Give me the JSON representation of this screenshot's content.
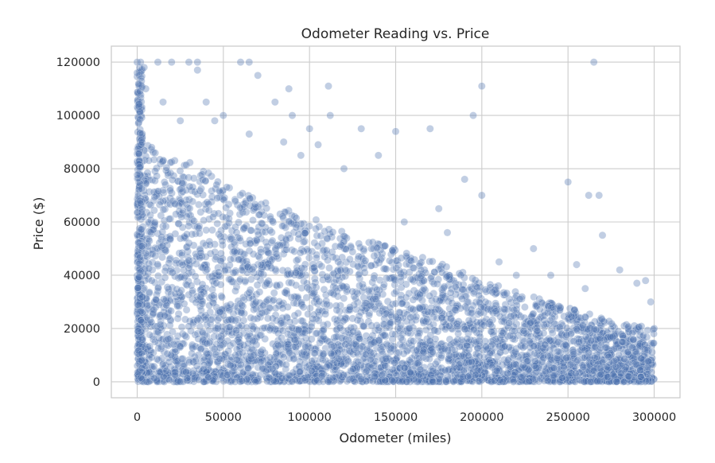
{
  "chart_data": {
    "type": "scatter",
    "title": "Odometer Reading vs. Price",
    "xlabel": "Odometer (miles)",
    "ylabel": "Price ($)",
    "xlim": [
      -15000,
      315000
    ],
    "ylim": [
      -6000,
      126000
    ],
    "x_ticks": [
      0,
      50000,
      100000,
      150000,
      200000,
      250000,
      300000
    ],
    "y_ticks": [
      0,
      20000,
      40000,
      60000,
      80000,
      100000,
      120000
    ],
    "grid": true,
    "legend": "none",
    "series": [
      {
        "color": "#4c72b0",
        "marker": "circle",
        "alpha": 0.35,
        "dense_region": {
          "x_range": [
            0,
            300000
          ],
          "upper_price_envelope": [
            [
              0,
              90000
            ],
            [
              25000,
              85000
            ],
            [
              50000,
              75000
            ],
            [
              75000,
              67000
            ],
            [
              100000,
              62000
            ],
            [
              125000,
              55000
            ],
            [
              150000,
              50000
            ],
            [
              175000,
              45000
            ],
            [
              200000,
              38000
            ],
            [
              225000,
              33000
            ],
            [
              250000,
              28000
            ],
            [
              275000,
              23000
            ],
            [
              300000,
              20000
            ]
          ]
        },
        "sample_points": [
          [
            0,
            120000
          ],
          [
            2000,
            120000
          ],
          [
            4000,
            118000
          ],
          [
            5000,
            110000
          ],
          [
            12000,
            120000
          ],
          [
            15000,
            105000
          ],
          [
            20000,
            120000
          ],
          [
            25000,
            98000
          ],
          [
            30000,
            120000
          ],
          [
            35000,
            120000
          ],
          [
            35000,
            117000
          ],
          [
            40000,
            105000
          ],
          [
            45000,
            98000
          ],
          [
            50000,
            100000
          ],
          [
            60000,
            120000
          ],
          [
            65000,
            120000
          ],
          [
            65000,
            93000
          ],
          [
            70000,
            115000
          ],
          [
            80000,
            105000
          ],
          [
            85000,
            90000
          ],
          [
            88000,
            110000
          ],
          [
            90000,
            100000
          ],
          [
            95000,
            85000
          ],
          [
            100000,
            95000
          ],
          [
            105000,
            89000
          ],
          [
            111000,
            111000
          ],
          [
            112000,
            100000
          ],
          [
            120000,
            80000
          ],
          [
            130000,
            95000
          ],
          [
            140000,
            85000
          ],
          [
            150000,
            94000
          ],
          [
            155000,
            60000
          ],
          [
            170000,
            95000
          ],
          [
            175000,
            65000
          ],
          [
            180000,
            56000
          ],
          [
            190000,
            76000
          ],
          [
            195000,
            100000
          ],
          [
            200000,
            111000
          ],
          [
            200000,
            70000
          ],
          [
            210000,
            45000
          ],
          [
            220000,
            40000
          ],
          [
            230000,
            50000
          ],
          [
            240000,
            40000
          ],
          [
            250000,
            75000
          ],
          [
            255000,
            44000
          ],
          [
            260000,
            35000
          ],
          [
            262000,
            70000
          ],
          [
            265000,
            120000
          ],
          [
            268000,
            70000
          ],
          [
            270000,
            55000
          ],
          [
            280000,
            42000
          ],
          [
            290000,
            37000
          ],
          [
            295000,
            38000
          ],
          [
            298000,
            30000
          ],
          [
            300000,
            20000
          ]
        ]
      }
    ]
  }
}
